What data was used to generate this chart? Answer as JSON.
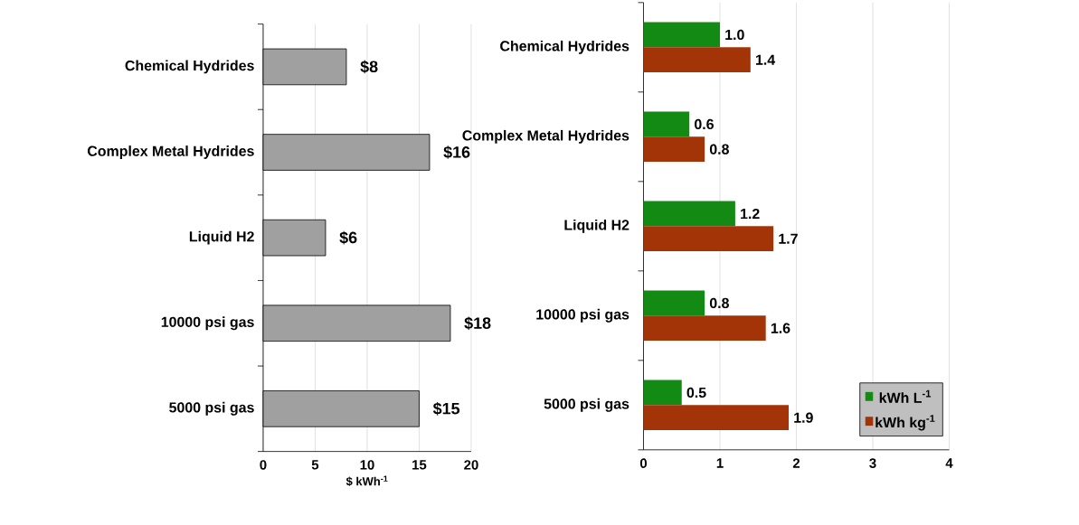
{
  "chart_data": [
    {
      "type": "bar",
      "orientation": "horizontal",
      "categories": [
        "Chemical Hydrides",
        "Complex Metal Hydrides",
        "Liquid H2",
        "10000 psi gas",
        "5000 psi gas"
      ],
      "values": [
        8,
        16,
        6,
        18,
        15
      ],
      "color": "#a0a0a0",
      "value_labels": [
        "$8",
        "$16",
        "$6",
        "$18",
        "$15"
      ],
      "xlim": [
        0,
        20
      ],
      "xticks": [
        0,
        5,
        10,
        15,
        20
      ],
      "xlabel": "$ kWh$^{-1}$",
      "grid": "x"
    },
    {
      "type": "bar",
      "orientation": "horizontal",
      "categories": [
        "Chemical Hydrides",
        "Complex Metal Hydrides",
        "Liquid H2",
        "10000 psi gas",
        "5000 psi gas"
      ],
      "series": [
        {
          "name": "kWh L$^{-1}$",
          "color": "#138a13",
          "values": [
            1.0,
            0.6,
            1.2,
            0.8,
            0.5
          ],
          "value_labels": [
            "1.0",
            "0.6",
            "1.2",
            "0.8",
            "0.5"
          ]
        },
        {
          "name": "kWh  kg$^{-1}$",
          "color": "#a33408",
          "values": [
            1.4,
            0.8,
            1.7,
            1.6,
            1.9
          ],
          "value_labels": [
            "1.4",
            "0.8",
            "1.7",
            "1.6",
            "1.9"
          ]
        }
      ],
      "xlim": [
        0,
        4
      ],
      "xticks": [
        0,
        1,
        2,
        3,
        4
      ],
      "grid": "x",
      "legend": "bottom right"
    }
  ]
}
